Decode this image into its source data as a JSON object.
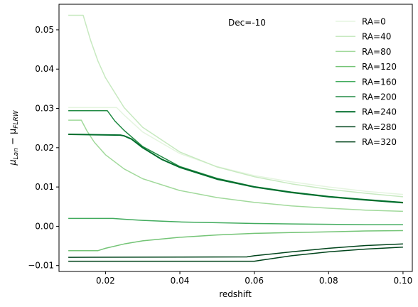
{
  "chart_data": {
    "type": "line",
    "annotation": "Dec=-10",
    "xlabel": "redshift",
    "ylabel_main": "μ",
    "ylabel_sub1": "Lan",
    "ylabel_minus": " − μ",
    "ylabel_sub2": "FLRW",
    "xlim": [
      0.0075,
      0.1025
    ],
    "ylim": [
      -0.0115,
      0.0565
    ],
    "xticks": [
      0.02,
      0.04,
      0.06,
      0.08,
      0.1
    ],
    "xtick_labels": [
      "0.02",
      "0.04",
      "0.06",
      "0.08",
      "0.10"
    ],
    "yticks": [
      -0.01,
      0.0,
      0.01,
      0.02,
      0.03,
      0.04,
      0.05
    ],
    "ytick_labels": [
      "−0.01",
      "0.00",
      "0.01",
      "0.02",
      "0.03",
      "0.04",
      "0.05"
    ],
    "grid": false,
    "legend_position": "top-right",
    "series": [
      {
        "name": "RA=0",
        "color": "#e5f5e0",
        "width": 1.5,
        "x": [
          0.01,
          0.023,
          0.025,
          0.03,
          0.04,
          0.05,
          0.06,
          0.07,
          0.08,
          0.09,
          0.1
        ],
        "y": [
          0.0302,
          0.0302,
          0.0283,
          0.024,
          0.0185,
          0.0152,
          0.0129,
          0.0113,
          0.01,
          0.0089,
          0.0081
        ]
      },
      {
        "name": "RA=40",
        "color": "#c7e9c0",
        "width": 1.5,
        "x": [
          0.01,
          0.014,
          0.016,
          0.018,
          0.02,
          0.025,
          0.03,
          0.04,
          0.05,
          0.06,
          0.07,
          0.08,
          0.09,
          0.1
        ],
        "y": [
          0.0537,
          0.0537,
          0.0473,
          0.042,
          0.0378,
          0.0302,
          0.0252,
          0.0189,
          0.0151,
          0.0126,
          0.0108,
          0.0094,
          0.0084,
          0.0075
        ]
      },
      {
        "name": "RA=80",
        "color": "#a1d99b",
        "width": 1.5,
        "x": [
          0.01,
          0.0135,
          0.015,
          0.017,
          0.02,
          0.025,
          0.03,
          0.04,
          0.05,
          0.06,
          0.07,
          0.08,
          0.09,
          0.1
        ],
        "y": [
          0.027,
          0.027,
          0.0243,
          0.0214,
          0.0182,
          0.0146,
          0.0121,
          0.0091,
          0.0073,
          0.0061,
          0.0052,
          0.0046,
          0.0041,
          0.0038
        ]
      },
      {
        "name": "RA=120",
        "color": "#74c476",
        "width": 1.5,
        "x": [
          0.01,
          0.018,
          0.02,
          0.025,
          0.03,
          0.04,
          0.05,
          0.06,
          0.07,
          0.08,
          0.09,
          0.1
        ],
        "y": [
          -0.0062,
          -0.0062,
          -0.0056,
          -0.0045,
          -0.0037,
          -0.0028,
          -0.0022,
          -0.0018,
          -0.0016,
          -0.0014,
          -0.0012,
          -0.0011
        ]
      },
      {
        "name": "RA=160",
        "color": "#41ab5d",
        "width": 1.5,
        "x": [
          0.01,
          0.022,
          0.025,
          0.03,
          0.04,
          0.05,
          0.06,
          0.07,
          0.08,
          0.09,
          0.1
        ],
        "y": [
          0.002,
          0.002,
          0.0018,
          0.0015,
          0.0011,
          0.0009,
          0.0007,
          0.0006,
          0.0005,
          0.0004,
          0.0004
        ]
      },
      {
        "name": "RA=200",
        "color": "#238b45",
        "width": 1.5,
        "x": [
          0.01,
          0.0205,
          0.0225,
          0.025,
          0.03,
          0.04,
          0.05,
          0.06,
          0.07,
          0.08,
          0.09,
          0.1
        ],
        "y": [
          0.0294,
          0.0294,
          0.0268,
          0.0244,
          0.0203,
          0.0152,
          0.0122,
          0.0101,
          0.0087,
          0.0076,
          0.0068,
          0.0061
        ]
      },
      {
        "name": "RA=240",
        "color": "#006d2c",
        "width": 2,
        "x": [
          0.01,
          0.024,
          0.025,
          0.026,
          0.027,
          0.03,
          0.035,
          0.04,
          0.05,
          0.06,
          0.07,
          0.08,
          0.09,
          0.1
        ],
        "y": [
          0.0234,
          0.0232,
          0.023,
          0.0226,
          0.0222,
          0.02,
          0.0171,
          0.015,
          0.012,
          0.01,
          0.0086,
          0.0075,
          0.0067,
          0.006
        ]
      },
      {
        "name": "RA=280",
        "color": "#00441b",
        "width": 1.5,
        "x": [
          0.01,
          0.06,
          0.062,
          0.07,
          0.08,
          0.09,
          0.1
        ],
        "y": [
          -0.0089,
          -0.0089,
          -0.0086,
          -0.0075,
          -0.0065,
          -0.0058,
          -0.0053
        ]
      },
      {
        "name": "RA=320",
        "color": "#00441b",
        "width": 1.5,
        "x": [
          0.01,
          0.058,
          0.06,
          0.07,
          0.08,
          0.09,
          0.1
        ],
        "y": [
          -0.0079,
          -0.0078,
          -0.0075,
          -0.0065,
          -0.0056,
          -0.0049,
          -0.0045
        ]
      }
    ]
  }
}
